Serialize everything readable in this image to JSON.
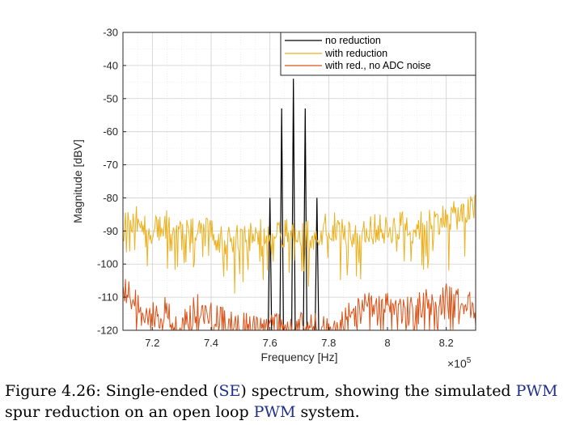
{
  "chart_data": {
    "type": "line",
    "xlabel": "Frequency [Hz]",
    "ylabel": "Magnitude [dBV]",
    "x_exponent_label": "×10",
    "x_exponent_power": "5",
    "xlim": [
      7.1,
      8.3
    ],
    "ylim": [
      -120,
      -30
    ],
    "x_scale_factor": 100000,
    "xticks": [
      7.2,
      7.4,
      7.6,
      7.8,
      8.0,
      8.2
    ],
    "xtick_labels": [
      "7.2",
      "7.4",
      "7.6",
      "7.8",
      "8",
      "8.2"
    ],
    "yticks": [
      -30,
      -40,
      -50,
      -60,
      -70,
      -80,
      -90,
      -100,
      -110,
      -120
    ],
    "ytick_labels": [
      "-30",
      "-40",
      "-50",
      "-60",
      "-70",
      "-80",
      "-90",
      "-100",
      "-110",
      "-120"
    ],
    "grid": true,
    "legend_position": "top-right",
    "series": [
      {
        "name": "no reduction",
        "color": "#000000",
        "kind": "peaks",
        "points": [
          [
            7.6,
            -80
          ],
          [
            7.64,
            -53
          ],
          [
            7.68,
            -44
          ],
          [
            7.72,
            -53
          ],
          [
            7.76,
            -80
          ]
        ]
      },
      {
        "name": "with reduction",
        "color": "#edb120",
        "kind": "noise",
        "points": [
          [
            7.1,
            -88
          ],
          [
            7.15,
            -86
          ],
          [
            7.2,
            -90
          ],
          [
            7.25,
            -88
          ],
          [
            7.3,
            -92
          ],
          [
            7.35,
            -89
          ],
          [
            7.4,
            -91
          ],
          [
            7.45,
            -93
          ],
          [
            7.5,
            -92
          ],
          [
            7.55,
            -91
          ],
          [
            7.6,
            -90
          ],
          [
            7.65,
            -91
          ],
          [
            7.7,
            -90
          ],
          [
            7.75,
            -92
          ],
          [
            7.8,
            -88
          ],
          [
            7.85,
            -90
          ],
          [
            7.9,
            -91
          ],
          [
            7.95,
            -89
          ],
          [
            8.0,
            -90
          ],
          [
            8.05,
            -88
          ],
          [
            8.1,
            -89
          ],
          [
            8.15,
            -87
          ],
          [
            8.2,
            -86
          ],
          [
            8.25,
            -85
          ],
          [
            8.3,
            -83
          ]
        ]
      },
      {
        "name": "with red., no ADC noise",
        "color": "#d95319",
        "kind": "noise",
        "points": [
          [
            7.1,
            -108
          ],
          [
            7.15,
            -112
          ],
          [
            7.2,
            -116
          ],
          [
            7.25,
            -114
          ],
          [
            7.3,
            -118
          ],
          [
            7.35,
            -113
          ],
          [
            7.4,
            -115
          ],
          [
            7.45,
            -118
          ],
          [
            7.5,
            -119
          ],
          [
            7.55,
            -119
          ],
          [
            7.6,
            -119
          ],
          [
            7.65,
            -119
          ],
          [
            7.7,
            -119
          ],
          [
            7.75,
            -119
          ],
          [
            7.8,
            -119
          ],
          [
            7.85,
            -117
          ],
          [
            7.9,
            -114
          ],
          [
            7.95,
            -112
          ],
          [
            8.0,
            -113
          ],
          [
            8.05,
            -115
          ],
          [
            8.1,
            -113
          ],
          [
            8.15,
            -111
          ],
          [
            8.2,
            -110
          ],
          [
            8.25,
            -112
          ],
          [
            8.3,
            -113
          ]
        ]
      }
    ]
  },
  "caption": {
    "prefix": "Figure 4.26: Single-ended (",
    "abbr1": "SE",
    "mid": ") spectrum, showing the simulated ",
    "abbr2": "PWM",
    "line2_start": "spur reduction on an open loop ",
    "abbr3": "PWM",
    "suffix": " system."
  }
}
